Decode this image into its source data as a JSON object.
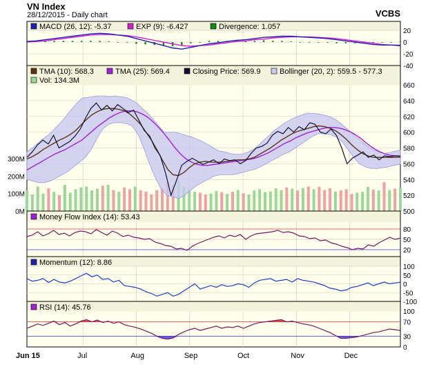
{
  "header": {
    "title": "VN Index",
    "subtitle": "28/12/2015 - Daily chart",
    "brand": "VCBS"
  },
  "colors": {
    "panel_bg": "#ffffec",
    "legend_bg": "#f3f3dc",
    "grid": "#c8c8c8",
    "macd": "#1f1fb0",
    "signal": "#d21ed2",
    "divergence": "#108a10",
    "tma10": "#5a3414",
    "tma25": "#a020d8",
    "close": "#101030",
    "bollinger_fill": "#c8c8f0",
    "bollinger_edge": "#9a9ae0",
    "vol_up": "#9ad89a",
    "vol_down": "#f0a0a0",
    "mfi": "#7a1460",
    "momentum": "#1a3cd0",
    "rsi": "#7a1460",
    "ref_red": "#e03030",
    "ref_blue": "#3030e0",
    "rsi_hi": "#f05050",
    "rsi_lo": "#6060e8"
  },
  "chart_data": [
    {
      "id": "macd",
      "type": "line",
      "y_ticks": [
        "20",
        "0",
        "-20",
        "-40"
      ],
      "ylim": [
        -40,
        20
      ],
      "legend": [
        {
          "icon": "square-blue",
          "text": "MACD (26, 12): -5.37"
        },
        {
          "icon": "square-magenta",
          "text": "EXP (9): -6.427"
        },
        {
          "icon": "square-green",
          "text": "Divergence: 1.057"
        }
      ],
      "series": [
        {
          "name": "MACD (26, 12)",
          "values": [
            1,
            2,
            4,
            6,
            8,
            10,
            12,
            14,
            15,
            14,
            12,
            10,
            6,
            2,
            -2,
            -6,
            -10,
            -12,
            -9,
            -6,
            -3,
            -1,
            1,
            3,
            4,
            6,
            8,
            9,
            10,
            10,
            9,
            8,
            7,
            6,
            4,
            2,
            0,
            -2,
            -4,
            -5,
            -5,
            -5.37
          ]
        },
        {
          "name": "EXP (9)",
          "values": [
            0,
            1,
            2,
            4,
            6,
            8,
            10,
            12,
            13,
            13,
            12,
            11,
            9,
            6,
            3,
            0,
            -3,
            -6,
            -7,
            -6,
            -5,
            -3,
            -1,
            1,
            2,
            4,
            5,
            7,
            8,
            9,
            9,
            9,
            8,
            7,
            6,
            4,
            2,
            0,
            -2,
            -4,
            -5,
            -6.43
          ]
        },
        {
          "name": "Divergence",
          "values": [
            1,
            1,
            2,
            2,
            2,
            2,
            2,
            2,
            2,
            1,
            0,
            -1,
            -3,
            -4,
            -5,
            -6,
            -7,
            -6,
            -2,
            0,
            2,
            2,
            2,
            2,
            2,
            2,
            3,
            2,
            2,
            1,
            0,
            -1,
            -1,
            -1,
            -2,
            -2,
            -2,
            -2,
            -2,
            -1,
            0,
            1.06
          ]
        }
      ]
    },
    {
      "id": "price",
      "type": "line",
      "y_ticks": [
        "660",
        "640",
        "620",
        "600",
        "580",
        "560",
        "540",
        "520",
        "500"
      ],
      "ylim": [
        500,
        660
      ],
      "vol_ticks": [
        "300M",
        "200M",
        "100M",
        "0M"
      ],
      "vol_lim": [
        0,
        300
      ],
      "legend": [
        {
          "icon": "square-brown",
          "text": "TMA (10): 568.3"
        },
        {
          "icon": "square-purple",
          "text": "TMA (25): 569.4"
        },
        {
          "icon": "square-navy",
          "text": "Closing Price: 569.9"
        },
        {
          "icon": "square-lavender",
          "text": "Bollinger (20, 2): 559.5 - 577.3"
        },
        {
          "icon": "square-lightgreen",
          "text": "Vol: 134.3M"
        }
      ],
      "series": [
        {
          "name": "Closing Price",
          "values": [
            568,
            575,
            584,
            590,
            585,
            596,
            580,
            584,
            588,
            595,
            604,
            618,
            630,
            637,
            628,
            634,
            627,
            635,
            630,
            625,
            628,
            615,
            602,
            595,
            580,
            570,
            548,
            520,
            538,
            558,
            563,
            567,
            563,
            559,
            562,
            565,
            560,
            566,
            564,
            565,
            560,
            564,
            573,
            580,
            582,
            586,
            596,
            601,
            598,
            606,
            600,
            607,
            603,
            612,
            610,
            600,
            598,
            604,
            596,
            580,
            560,
            567,
            571,
            575,
            568,
            571,
            565,
            570,
            569,
            570,
            569.9
          ]
        },
        {
          "name": "TMA (10)",
          "values": [
            566,
            569,
            573,
            578,
            582,
            586,
            590,
            593,
            597,
            602,
            609,
            616,
            622,
            626,
            629,
            630,
            630,
            629,
            627,
            623,
            617,
            610,
            600,
            590,
            578,
            565,
            553,
            546,
            545,
            549,
            555,
            560,
            562,
            563,
            562,
            562,
            562,
            563,
            564,
            565,
            565,
            566,
            568,
            572,
            576,
            580,
            585,
            590,
            594,
            598,
            601,
            603,
            605,
            607,
            608,
            607,
            605,
            602,
            597,
            591,
            584,
            578,
            573,
            570,
            568,
            568,
            568,
            568,
            568,
            568.3
          ]
        },
        {
          "name": "TMA (25)",
          "values": [
            552,
            556,
            560,
            564,
            568,
            572,
            575,
            578,
            582,
            586,
            590,
            596,
            602,
            608,
            613,
            618,
            622,
            625,
            627,
            627,
            626,
            623,
            619,
            613,
            606,
            598,
            589,
            580,
            572,
            566,
            562,
            559,
            558,
            558,
            559,
            560,
            561,
            562,
            563,
            564,
            565,
            566,
            568,
            571,
            574,
            578,
            582,
            586,
            589,
            593,
            596,
            599,
            601,
            603,
            605,
            606,
            606,
            605,
            603,
            600,
            596,
            591,
            585,
            580,
            576,
            573,
            571,
            570,
            569.4
          ]
        },
        {
          "name": "Bollinger Upper",
          "values": [
            575,
            580,
            586,
            592,
            597,
            604,
            611,
            619,
            628,
            636,
            643,
            644,
            645,
            646,
            646,
            645,
            646,
            645,
            644,
            641,
            637,
            630,
            624,
            616,
            608,
            600,
            600,
            600,
            598,
            596,
            594,
            591,
            588,
            584,
            580,
            576,
            575,
            573,
            572,
            572,
            574,
            577,
            582,
            589,
            595,
            602,
            607,
            612,
            616,
            619,
            622,
            624,
            624,
            623,
            622,
            620,
            617,
            612,
            606,
            600,
            594,
            588,
            582,
            578,
            575,
            573,
            574,
            576,
            577.3
          ]
        },
        {
          "name": "Bollinger Lower",
          "values": [
            540,
            538,
            536,
            536,
            538,
            542,
            546,
            550,
            556,
            562,
            568,
            578,
            592,
            604,
            610,
            612,
            612,
            611,
            608,
            598,
            580,
            560,
            542,
            528,
            520,
            518,
            516,
            520,
            526,
            532,
            536,
            540,
            544,
            546,
            546,
            546,
            547,
            549,
            551,
            553,
            556,
            560,
            564,
            568,
            572,
            575,
            580,
            585,
            590,
            595,
            598,
            598,
            597,
            594,
            588,
            578,
            568,
            560,
            556,
            554,
            554,
            555,
            556,
            558,
            559.5
          ]
        },
        {
          "name": "Vol",
          "values": [
            120,
            95,
            140,
            100,
            130,
            110,
            90,
            150,
            105,
            125,
            135,
            140,
            118,
            128,
            145,
            150,
            120,
            110,
            135,
            125,
            140,
            118,
            112,
            95,
            120,
            130,
            165,
            150,
            170,
            138,
            120,
            110,
            105,
            95,
            100,
            115,
            108,
            98,
            110,
            120,
            102,
            95,
            118,
            125,
            108,
            112,
            130,
            120,
            135,
            128,
            118,
            132,
            140,
            125,
            138,
            120,
            130,
            112,
            118,
            125,
            98,
            105,
            110,
            138,
            122,
            118,
            165,
            120,
            128,
            134.3
          ]
        }
      ]
    },
    {
      "id": "mfi",
      "type": "line",
      "y_ticks": [
        "80",
        "50",
        "20"
      ],
      "ylim": [
        0,
        100
      ],
      "legend": [
        {
          "icon": "square-purple",
          "text": "Money Flow Index (14): 53.43"
        }
      ],
      "series": [
        {
          "name": "Money Flow Index (14)",
          "values": [
            58,
            62,
            72,
            60,
            66,
            76,
            64,
            68,
            60,
            70,
            74,
            72,
            66,
            78,
            70,
            62,
            74,
            68,
            58,
            62,
            56,
            54,
            50,
            52,
            42,
            38,
            32,
            30,
            22,
            24,
            18,
            30,
            38,
            44,
            50,
            56,
            60,
            54,
            62,
            58,
            64,
            50,
            60,
            66,
            68,
            70,
            72,
            76,
            70,
            72,
            68,
            60,
            58,
            52,
            54,
            46,
            48,
            40,
            36,
            30,
            26,
            20,
            24,
            22,
            34,
            30,
            40,
            48,
            56,
            50,
            53.43
          ]
        }
      ]
    },
    {
      "id": "momentum",
      "type": "line",
      "y_ticks": [
        "100",
        "50",
        "0",
        "-50",
        "-100"
      ],
      "ylim": [
        -100,
        100
      ],
      "legend": [
        {
          "icon": "square-blue",
          "text": "Momentum (12): 8.86"
        }
      ],
      "series": [
        {
          "name": "Momentum (12)",
          "values": [
            30,
            15,
            20,
            30,
            8,
            25,
            10,
            5,
            15,
            30,
            45,
            60,
            40,
            50,
            25,
            30,
            10,
            20,
            -10,
            -15,
            -20,
            -30,
            -45,
            -55,
            -70,
            -60,
            -50,
            -70,
            -60,
            -40,
            -20,
            0,
            -30,
            -20,
            -10,
            -20,
            -5,
            -15,
            -10,
            0,
            -5,
            -20,
            5,
            20,
            25,
            30,
            15,
            20,
            25,
            10,
            30,
            20,
            15,
            10,
            0,
            -10,
            -25,
            -30,
            -40,
            -35,
            -20,
            -15,
            -5,
            5,
            -10,
            0,
            10,
            0,
            5,
            8.86
          ]
        }
      ]
    },
    {
      "id": "rsi",
      "type": "line",
      "y_ticks": [
        "100",
        "70",
        "30",
        "0"
      ],
      "ylim": [
        0,
        100
      ],
      "legend": [
        {
          "icon": "square-purple",
          "text": "RSI (14): 45.76"
        }
      ],
      "series": [
        {
          "name": "RSI (14)",
          "values": [
            52,
            58,
            64,
            60,
            66,
            72,
            62,
            68,
            58,
            64,
            72,
            76,
            70,
            75,
            68,
            72,
            66,
            70,
            62,
            58,
            55,
            50,
            44,
            38,
            30,
            24,
            22,
            25,
            35,
            42,
            48,
            52,
            46,
            50,
            54,
            58,
            52,
            56,
            54,
            58,
            52,
            58,
            64,
            68,
            70,
            72,
            74,
            76,
            70,
            72,
            68,
            64,
            62,
            58,
            52,
            46,
            40,
            32,
            24,
            24,
            26,
            28,
            32,
            36,
            40,
            42,
            46,
            50,
            48,
            45.76
          ]
        }
      ]
    }
  ],
  "x_axis": {
    "labels": [
      "Jun 15",
      "Jul",
      "Aug",
      "Sep",
      "Oct",
      "Nov",
      "Dec"
    ]
  }
}
